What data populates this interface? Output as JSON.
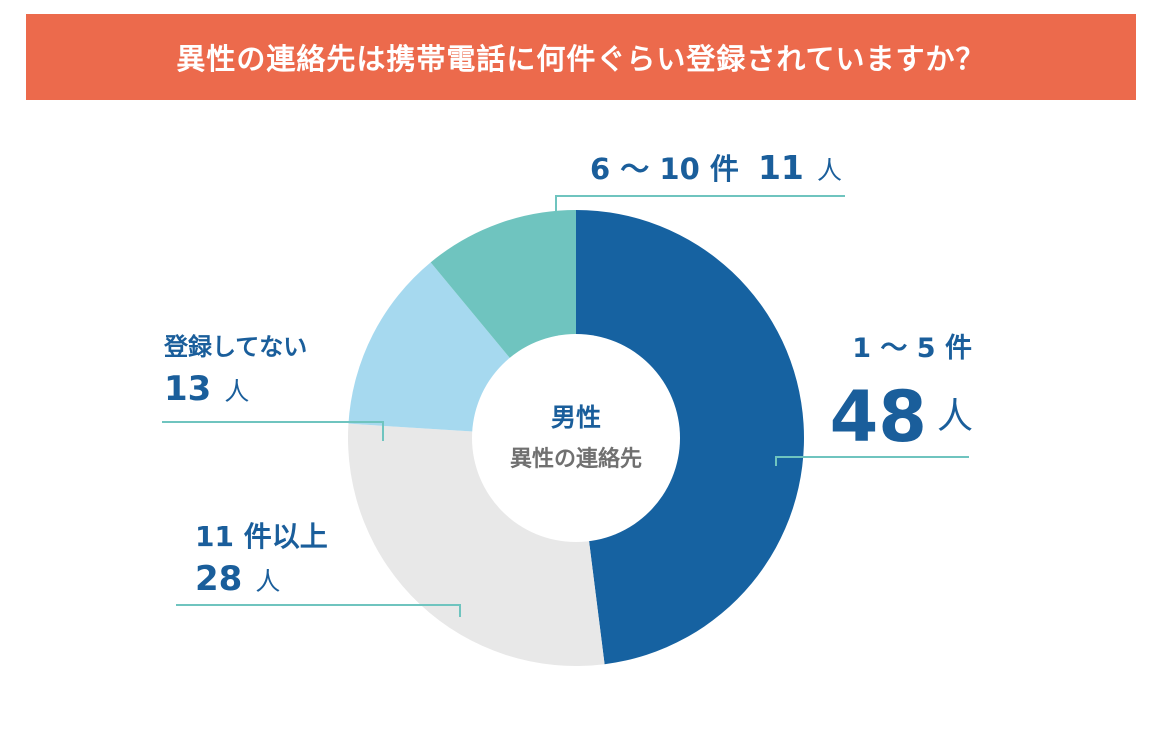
{
  "title": "異性の連絡先は携帯電話に何件ぐらい登録されていますか？",
  "chart_data": {
    "type": "pie",
    "center_title": "男性",
    "center_subtitle": "異性の連絡先",
    "slices": [
      {
        "label": "1 ～ 5 件",
        "value": 48,
        "unit": "人",
        "color": "#1662a1"
      },
      {
        "label": "11 件以上",
        "value": 28,
        "unit": "人",
        "color": "#e8e8e8"
      },
      {
        "label": "登録してない",
        "value": 13,
        "unit": "人",
        "color": "#a6d9ef"
      },
      {
        "label": "6 ～ 10 件",
        "value": 11,
        "unit": "人",
        "color": "#6fc4bf"
      }
    ]
  }
}
